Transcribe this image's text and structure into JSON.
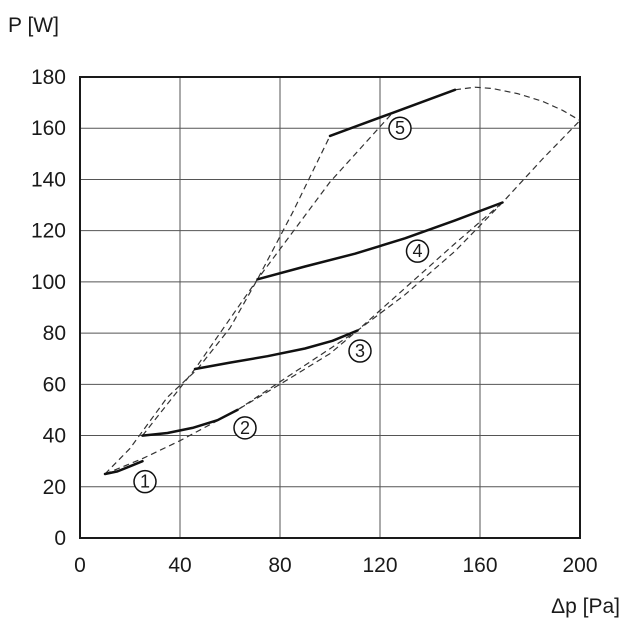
{
  "chart_data": {
    "type": "line",
    "xlabel": "Δp [Pa]",
    "ylabel": "P [W]",
    "xlim": [
      0,
      200
    ],
    "ylim": [
      0,
      180
    ],
    "xticks": [
      0,
      40,
      80,
      120,
      160,
      200
    ],
    "yticks": [
      0,
      20,
      40,
      60,
      80,
      100,
      120,
      140,
      160,
      180
    ],
    "grid": true,
    "series": [
      {
        "name": "1",
        "style": "solid",
        "points": [
          [
            10,
            25
          ],
          [
            15,
            26
          ],
          [
            20,
            28
          ],
          [
            25,
            30
          ]
        ],
        "label_at": [
          26,
          22
        ]
      },
      {
        "name": "2",
        "style": "solid",
        "points": [
          [
            25,
            40
          ],
          [
            35,
            41
          ],
          [
            45,
            43
          ],
          [
            55,
            46
          ],
          [
            63,
            50
          ]
        ],
        "label_at": [
          66,
          43
        ]
      },
      {
        "name": "3",
        "style": "solid",
        "points": [
          [
            46,
            66
          ],
          [
            60,
            68.5
          ],
          [
            75,
            71
          ],
          [
            90,
            74
          ],
          [
            101,
            77
          ],
          [
            111,
            81
          ]
        ],
        "label_at": [
          112,
          73
        ]
      },
      {
        "name": "4",
        "style": "solid",
        "points": [
          [
            71,
            101
          ],
          [
            90,
            106
          ],
          [
            110,
            111
          ],
          [
            130,
            117
          ],
          [
            150,
            124
          ],
          [
            169,
            131
          ]
        ],
        "label_at": [
          135,
          112
        ]
      },
      {
        "name": "5",
        "style": "solid",
        "points": [
          [
            100,
            157
          ],
          [
            125,
            166
          ],
          [
            150,
            175
          ]
        ],
        "label_at": [
          128,
          160
        ]
      }
    ],
    "envelopes": [
      {
        "style": "dashed",
        "points": [
          [
            10,
            25
          ],
          [
            20,
            35
          ],
          [
            35,
            55
          ],
          [
            47,
            66
          ],
          [
            60,
            82
          ],
          [
            71,
            101
          ],
          [
            85,
            127
          ],
          [
            100,
            157
          ]
        ]
      },
      {
        "style": "dashed",
        "points": [
          [
            10,
            25
          ],
          [
            25,
            31
          ],
          [
            40,
            38
          ],
          [
            63,
            50
          ],
          [
            80,
            60
          ],
          [
            100,
            72
          ],
          [
            111,
            81
          ],
          [
            130,
            95
          ],
          [
            150,
            112
          ],
          [
            169,
            131
          ],
          [
            185,
            148
          ],
          [
            200,
            163
          ]
        ]
      },
      {
        "style": "dashed",
        "points": [
          [
            25,
            40
          ],
          [
            46,
            66
          ],
          [
            71,
            101
          ],
          [
            100,
            139
          ],
          [
            125,
            166
          ],
          [
            150,
            175
          ]
        ]
      },
      {
        "style": "dashed",
        "points": [
          [
            63,
            50
          ],
          [
            111,
            81
          ],
          [
            150,
            115
          ],
          [
            169,
            131
          ]
        ]
      },
      {
        "style": "dashed",
        "points": [
          [
            150,
            175
          ],
          [
            158,
            176
          ],
          [
            165,
            175.5
          ],
          [
            175,
            173.5
          ],
          [
            185,
            170.5
          ],
          [
            193,
            167
          ],
          [
            200,
            163
          ]
        ]
      }
    ]
  }
}
